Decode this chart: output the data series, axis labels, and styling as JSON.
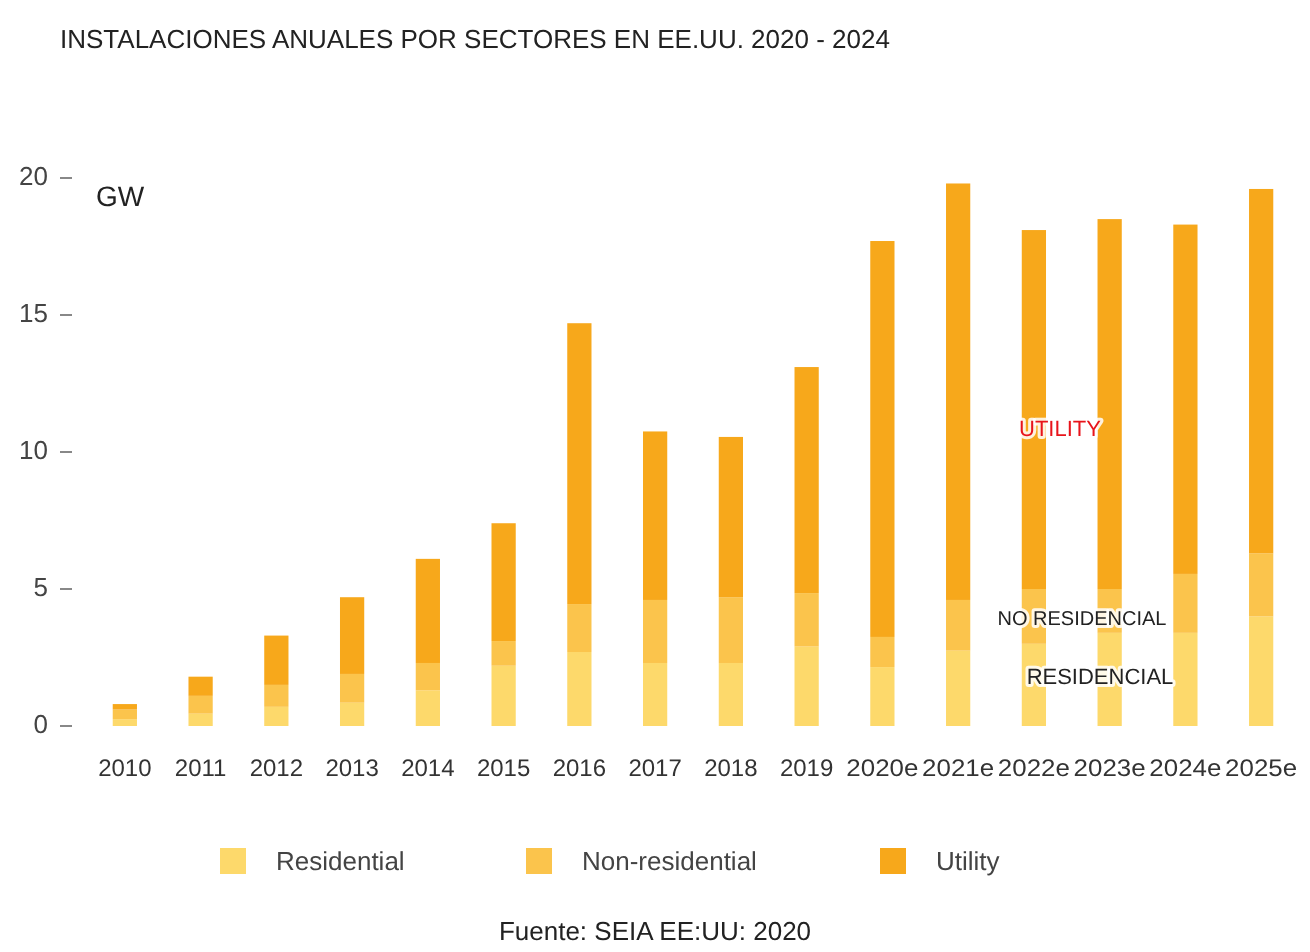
{
  "chart_data": {
    "type": "bar",
    "title": "INSTALACIONES ANUALES POR SECTORES EN EE.UU. 2020 - 2024",
    "ylabel": "GW",
    "stacked": true,
    "categories": [
      "2010",
      "2011",
      "2012",
      "2013",
      "2014",
      "2015",
      "2016",
      "2017",
      "2018",
      "2019",
      "2020e",
      "2021e",
      "2022e",
      "2023e",
      "2024e",
      "2025e"
    ],
    "series": [
      {
        "name": "Residential",
        "color": "#fdd96b",
        "values": [
          0.25,
          0.45,
          0.7,
          0.85,
          1.3,
          2.2,
          2.7,
          2.3,
          2.3,
          2.9,
          2.15,
          2.75,
          3.0,
          3.4,
          3.4,
          4.0
        ]
      },
      {
        "name": "Non-residential",
        "color": "#fbc44c",
        "values": [
          0.35,
          0.65,
          0.8,
          1.05,
          1.0,
          0.9,
          1.75,
          2.3,
          2.4,
          1.95,
          1.1,
          1.85,
          2.0,
          1.6,
          2.15,
          2.3
        ]
      },
      {
        "name": "Utility",
        "color": "#f7a81b",
        "values": [
          0.2,
          0.7,
          1.8,
          2.8,
          3.8,
          4.3,
          10.25,
          6.15,
          5.85,
          8.25,
          14.45,
          15.2,
          13.1,
          13.5,
          12.75,
          13.3
        ]
      }
    ],
    "ylim": [
      0,
      20
    ],
    "yticks": [
      0,
      5,
      10,
      15,
      20
    ],
    "grid": false,
    "legend": "bottom",
    "annotations": [
      "UTILITY",
      "NO RESIDENCIAL",
      "RESIDENCIAL",
      "Fuente: SEIA EE:UU: 2020"
    ]
  }
}
